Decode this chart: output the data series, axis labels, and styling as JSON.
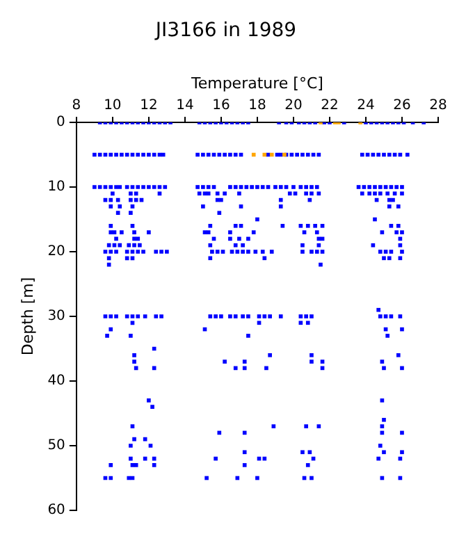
{
  "chart_data": {
    "type": "scatter",
    "title": "JI3166 in 1989",
    "xlabel": "Temperature [°C]",
    "ylabel": "Depth [m]",
    "xlim": [
      8,
      28
    ],
    "xticks": [
      8,
      10,
      12,
      14,
      16,
      18,
      20,
      22,
      24,
      26,
      28
    ],
    "ylim": [
      60,
      0
    ],
    "yticks": [
      0,
      10,
      20,
      30,
      40,
      50,
      60
    ],
    "grid": false,
    "legend": false,
    "marker": "square",
    "series": [
      {
        "color": "#0000ff",
        "x": [
          9.3,
          9.6,
          9.9,
          10.2,
          10.5,
          10.8,
          11.1,
          11.4,
          11.7,
          12.0,
          12.3,
          12.6,
          12.9,
          13.2,
          14.8,
          15.1,
          15.4,
          15.7,
          16.0,
          16.3,
          16.6,
          16.9,
          17.2,
          17.5,
          19.2,
          19.6,
          19.9,
          20.3,
          20.6,
          20.9,
          21.2,
          21.7,
          22.0,
          22.8,
          24.0,
          24.3,
          24.6,
          24.9,
          25.2,
          25.5,
          25.8,
          26.1,
          26.6,
          27.2,
          9.0,
          9.3,
          9.6,
          9.9,
          10.2,
          10.5,
          10.8,
          11.1,
          11.4,
          11.7,
          12.0,
          12.3,
          12.6,
          12.8,
          14.7,
          15.0,
          15.3,
          15.6,
          15.9,
          16.2,
          16.5,
          16.8,
          17.1,
          18.6,
          19.1,
          19.3,
          19.6,
          19.9,
          20.2,
          20.5,
          20.8,
          21.1,
          21.4,
          23.8,
          24.1,
          24.4,
          24.7,
          25.0,
          25.3,
          25.6,
          25.9,
          26.3,
          9.0,
          9.3,
          9.6,
          9.9,
          10.2,
          10.4,
          10.8,
          11.1,
          11.4,
          11.7,
          12.0,
          12.3,
          12.6,
          12.9,
          14.7,
          15.0,
          15.3,
          15.6,
          16.5,
          16.8,
          17.1,
          17.4,
          17.7,
          18.0,
          18.3,
          18.6,
          19.0,
          19.3,
          19.6,
          20.0,
          20.4,
          20.7,
          21.0,
          21.3,
          23.6,
          23.9,
          24.2,
          24.5,
          24.8,
          25.1,
          25.4,
          25.7,
          26.0,
          10.0,
          11.0,
          11.3,
          12.6,
          14.8,
          15.1,
          15.3,
          15.8,
          16.2,
          17.0,
          19.8,
          20.1,
          20.7,
          21.0,
          21.4,
          23.8,
          24.2,
          24.5,
          24.8,
          25.2,
          25.6,
          26.0,
          9.6,
          9.9,
          10.3,
          11.0,
          11.3,
          11.6,
          15.8,
          16.0,
          19.3,
          20.9,
          24.6,
          25.3,
          25.5,
          9.9,
          10.4,
          11.1,
          15.0,
          17.1,
          19.3,
          25.3,
          25.8,
          10.3,
          11.0,
          15.9,
          18.0,
          24.5,
          9.9,
          11.1,
          15.4,
          16.8,
          17.1,
          19.4,
          20.4,
          20.8,
          21.2,
          21.6,
          25.4,
          25.8,
          9.9,
          10.1,
          10.5,
          11.2,
          12.0,
          15.1,
          15.3,
          16.5,
          17.8,
          20.6,
          21.3,
          24.9,
          25.7,
          26.0,
          10.2,
          11.2,
          11.4,
          15.6,
          16.5,
          17.0,
          17.5,
          21.4,
          21.6,
          25.9,
          9.8,
          10.1,
          10.4,
          10.9,
          11.2,
          11.5,
          15.4,
          16.8,
          17.2,
          20.5,
          21.4,
          24.4,
          25.9,
          9.6,
          9.9,
          10.2,
          10.8,
          11.1,
          11.4,
          11.7,
          12.4,
          12.7,
          13.0,
          15.5,
          15.8,
          16.1,
          16.6,
          16.9,
          17.2,
          17.5,
          17.9,
          18.3,
          18.8,
          20.5,
          21.0,
          21.3,
          21.6,
          24.8,
          25.1,
          25.4,
          26.0,
          9.8,
          10.8,
          11.1,
          15.4,
          18.4,
          25.0,
          25.3,
          25.9,
          9.8,
          21.5,
          24.7,
          9.6,
          9.9,
          10.2,
          10.8,
          11.1,
          11.4,
          11.8,
          12.4,
          12.7,
          15.4,
          15.7,
          16.0,
          16.5,
          16.8,
          17.2,
          17.5,
          18.1,
          18.4,
          18.7,
          19.3,
          20.4,
          20.7,
          21.0,
          24.8,
          25.1,
          25.4,
          25.9,
          11.1,
          18.1,
          20.4,
          20.8,
          9.9,
          15.1,
          25.1,
          26.0,
          9.7,
          11.0,
          17.5,
          25.2,
          12.3,
          11.2,
          18.7,
          21.0,
          25.8,
          11.2,
          16.2,
          17.3,
          21.0,
          21.6,
          24.9,
          11.3,
          12.3,
          16.8,
          17.3,
          18.5,
          21.6,
          25.0,
          26.0,
          12.0,
          24.9,
          12.2,
          25.0,
          11.1,
          18.9,
          20.7,
          21.4,
          24.9,
          15.9,
          17.3,
          24.9,
          26.0,
          11.2,
          11.8,
          11.0,
          12.1,
          24.8,
          17.3,
          20.5,
          20.9,
          25.0,
          26.0,
          11.0,
          11.8,
          12.3,
          15.7,
          18.1,
          18.4,
          21.1,
          24.7,
          25.9,
          9.9,
          11.1,
          11.3,
          12.3,
          17.3,
          20.8,
          9.6,
          9.9,
          10.9,
          11.1,
          15.2,
          16.9,
          18.0,
          20.6,
          21.0,
          24.9,
          25.9
        ],
        "values": [
          0,
          0,
          0,
          0,
          0,
          0,
          0,
          0,
          0,
          0,
          0,
          0,
          0,
          0,
          0,
          0,
          0,
          0,
          0,
          0,
          0,
          0,
          0,
          0,
          0,
          0,
          0,
          0,
          0,
          0,
          0,
          0,
          0,
          0,
          0,
          0,
          0,
          0,
          0,
          0,
          0,
          0,
          0,
          0,
          5,
          5,
          5,
          5,
          5,
          5,
          5,
          5,
          5,
          5,
          5,
          5,
          5,
          5,
          5,
          5,
          5,
          5,
          5,
          5,
          5,
          5,
          5,
          5,
          5,
          5,
          5,
          5,
          5,
          5,
          5,
          5,
          5,
          5,
          5,
          5,
          5,
          5,
          5,
          5,
          5,
          5,
          10,
          10,
          10,
          10,
          10,
          10,
          10,
          10,
          10,
          10,
          10,
          10,
          10,
          10,
          10,
          10,
          10,
          10,
          10,
          10,
          10,
          10,
          10,
          10,
          10,
          10,
          10,
          10,
          10,
          10,
          10,
          10,
          10,
          10,
          10,
          10,
          10,
          10,
          10,
          10,
          10,
          10,
          10,
          11,
          11,
          11,
          11,
          11,
          11,
          11,
          11,
          11,
          11,
          11,
          11,
          11,
          11,
          11,
          11,
          11,
          11,
          11,
          11,
          11,
          11,
          12,
          12,
          12,
          12,
          12,
          12,
          12,
          12,
          12,
          12,
          12,
          12,
          12,
          13,
          13,
          13,
          13,
          13,
          13,
          13,
          13,
          14,
          14,
          14,
          15,
          15,
          16,
          16,
          16,
          16,
          16,
          16,
          16,
          16,
          16,
          16,
          16,
          16,
          17,
          17,
          17,
          17,
          17,
          17,
          17,
          17,
          17,
          17,
          17,
          17,
          17,
          17,
          18,
          18,
          18,
          18,
          18,
          18,
          18,
          18,
          18,
          18,
          19,
          19,
          19,
          19,
          19,
          19,
          19,
          19,
          19,
          19,
          19,
          19,
          19,
          20,
          20,
          20,
          20,
          20,
          20,
          20,
          20,
          20,
          20,
          20,
          20,
          20,
          20,
          20,
          20,
          20,
          20,
          20,
          20,
          20,
          20,
          20,
          20,
          20,
          20,
          20,
          20,
          21,
          21,
          21,
          21,
          21,
          21,
          21,
          21,
          22,
          22,
          29,
          30,
          30,
          30,
          30,
          30,
          30,
          30,
          30,
          30,
          30,
          30,
          30,
          30,
          30,
          30,
          30,
          30,
          30,
          30,
          30,
          30,
          30,
          30,
          30,
          30,
          30,
          30,
          31,
          31,
          31,
          31,
          32,
          32,
          32,
          32,
          33,
          33,
          33,
          33,
          35,
          36,
          36,
          36,
          36,
          37,
          37,
          37,
          37,
          37,
          37,
          38,
          38,
          38,
          38,
          38,
          38,
          38,
          38,
          43,
          43,
          44,
          46,
          47,
          47,
          47,
          47,
          47,
          48,
          48,
          48,
          48,
          49,
          49,
          50,
          50,
          50,
          51,
          51,
          51,
          51,
          51,
          52,
          52,
          52,
          52,
          52,
          52,
          52,
          52,
          52,
          53,
          53,
          53,
          53,
          53,
          53,
          55,
          55,
          55,
          55,
          55,
          55,
          55,
          55,
          55,
          55,
          55
        ]
      },
      {
        "color": "#ffa500",
        "x": [
          21.5,
          22.3,
          22.5,
          23.7,
          17.8,
          18.4,
          18.8,
          19.5
        ],
        "values": [
          0,
          0,
          0,
          0,
          5,
          5,
          5,
          5
        ]
      }
    ]
  }
}
